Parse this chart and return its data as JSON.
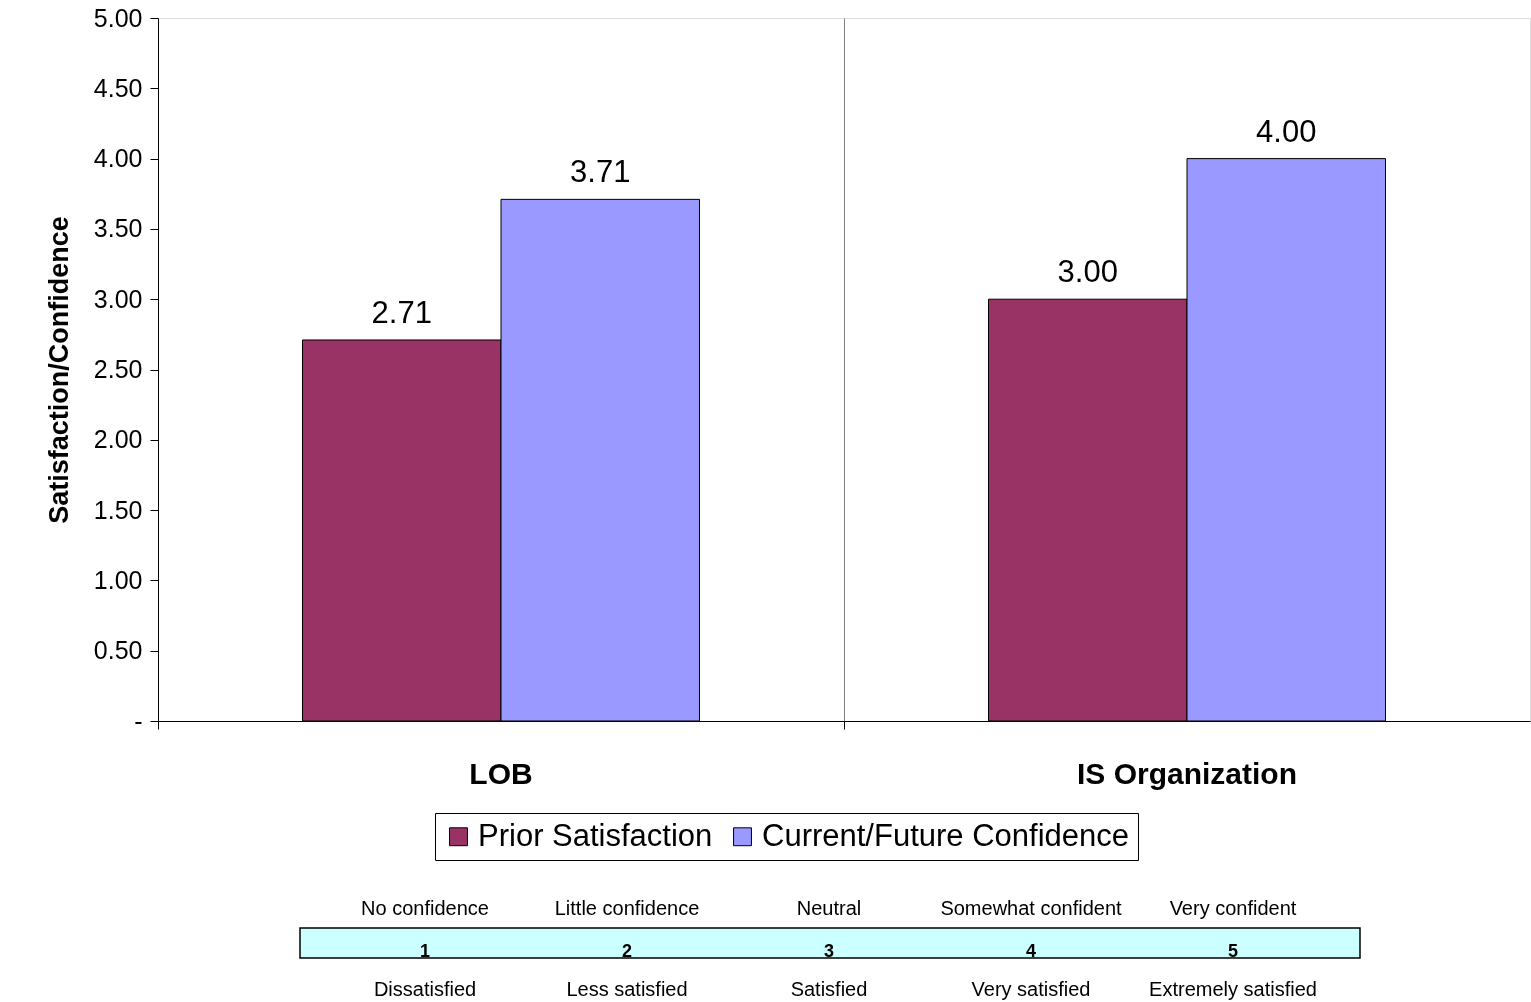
{
  "chart_data": {
    "type": "bar",
    "ylabel": "Satisfaction/Confidence",
    "categories": [
      "LOB",
      "IS Organization"
    ],
    "series": [
      {
        "name": "Prior Satisfaction",
        "color": "#993366",
        "values": [
          2.71,
          3.0
        ],
        "value_labels": [
          "2.71",
          "3.00"
        ]
      },
      {
        "name": "Current/Future Confidence",
        "color": "#9999ff",
        "values": [
          3.71,
          4.0
        ],
        "value_labels": [
          "3.71",
          "4.00"
        ]
      }
    ],
    "ylim": [
      0,
      5
    ],
    "yticks": [
      {
        "value": 0,
        "label": "-"
      },
      {
        "value": 0.5,
        "label": "0.50"
      },
      {
        "value": 1,
        "label": "1.00"
      },
      {
        "value": 1.5,
        "label": "1.50"
      },
      {
        "value": 2,
        "label": "2.00"
      },
      {
        "value": 2.5,
        "label": "2.50"
      },
      {
        "value": 3,
        "label": "3.00"
      },
      {
        "value": 3.5,
        "label": "3.50"
      },
      {
        "value": 4,
        "label": "4.00"
      },
      {
        "value": 4.5,
        "label": "4.50"
      },
      {
        "value": 5,
        "label": "5.00"
      }
    ],
    "grid": "x",
    "legend": "bottom",
    "annotations": [
      "No confidence",
      "Little confidence",
      "Neutral",
      "Somewhat confident",
      "Very confident",
      "1",
      "2",
      "3",
      "4",
      "5",
      "Dissatisfied",
      "Less satisfied",
      "Satisfied",
      "Very satisfied",
      "Extremely satisfied"
    ]
  }
}
